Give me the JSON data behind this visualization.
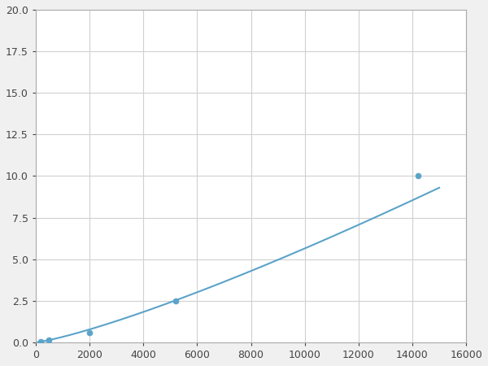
{
  "x_points": [
    200,
    500,
    2000,
    5200,
    14200
  ],
  "y_points": [
    0.05,
    0.15,
    0.6,
    2.5,
    10.0
  ],
  "line_color": "#5ba3c9",
  "marker_color": "#5ba3c9",
  "marker_size": 5,
  "line_width": 1.5,
  "xlim": [
    0,
    16000
  ],
  "ylim": [
    0,
    20
  ],
  "xticks": [
    0,
    2000,
    4000,
    6000,
    8000,
    10000,
    12000,
    14000,
    16000
  ],
  "yticks": [
    0.0,
    2.5,
    5.0,
    7.5,
    10.0,
    12.5,
    15.0,
    17.5,
    20.0
  ],
  "grid_color": "#d0d0d0",
  "background_color": "#ffffff",
  "figure_facecolor": "#f0f0f0",
  "tick_fontsize": 9,
  "spine_color": "#aaaaaa"
}
